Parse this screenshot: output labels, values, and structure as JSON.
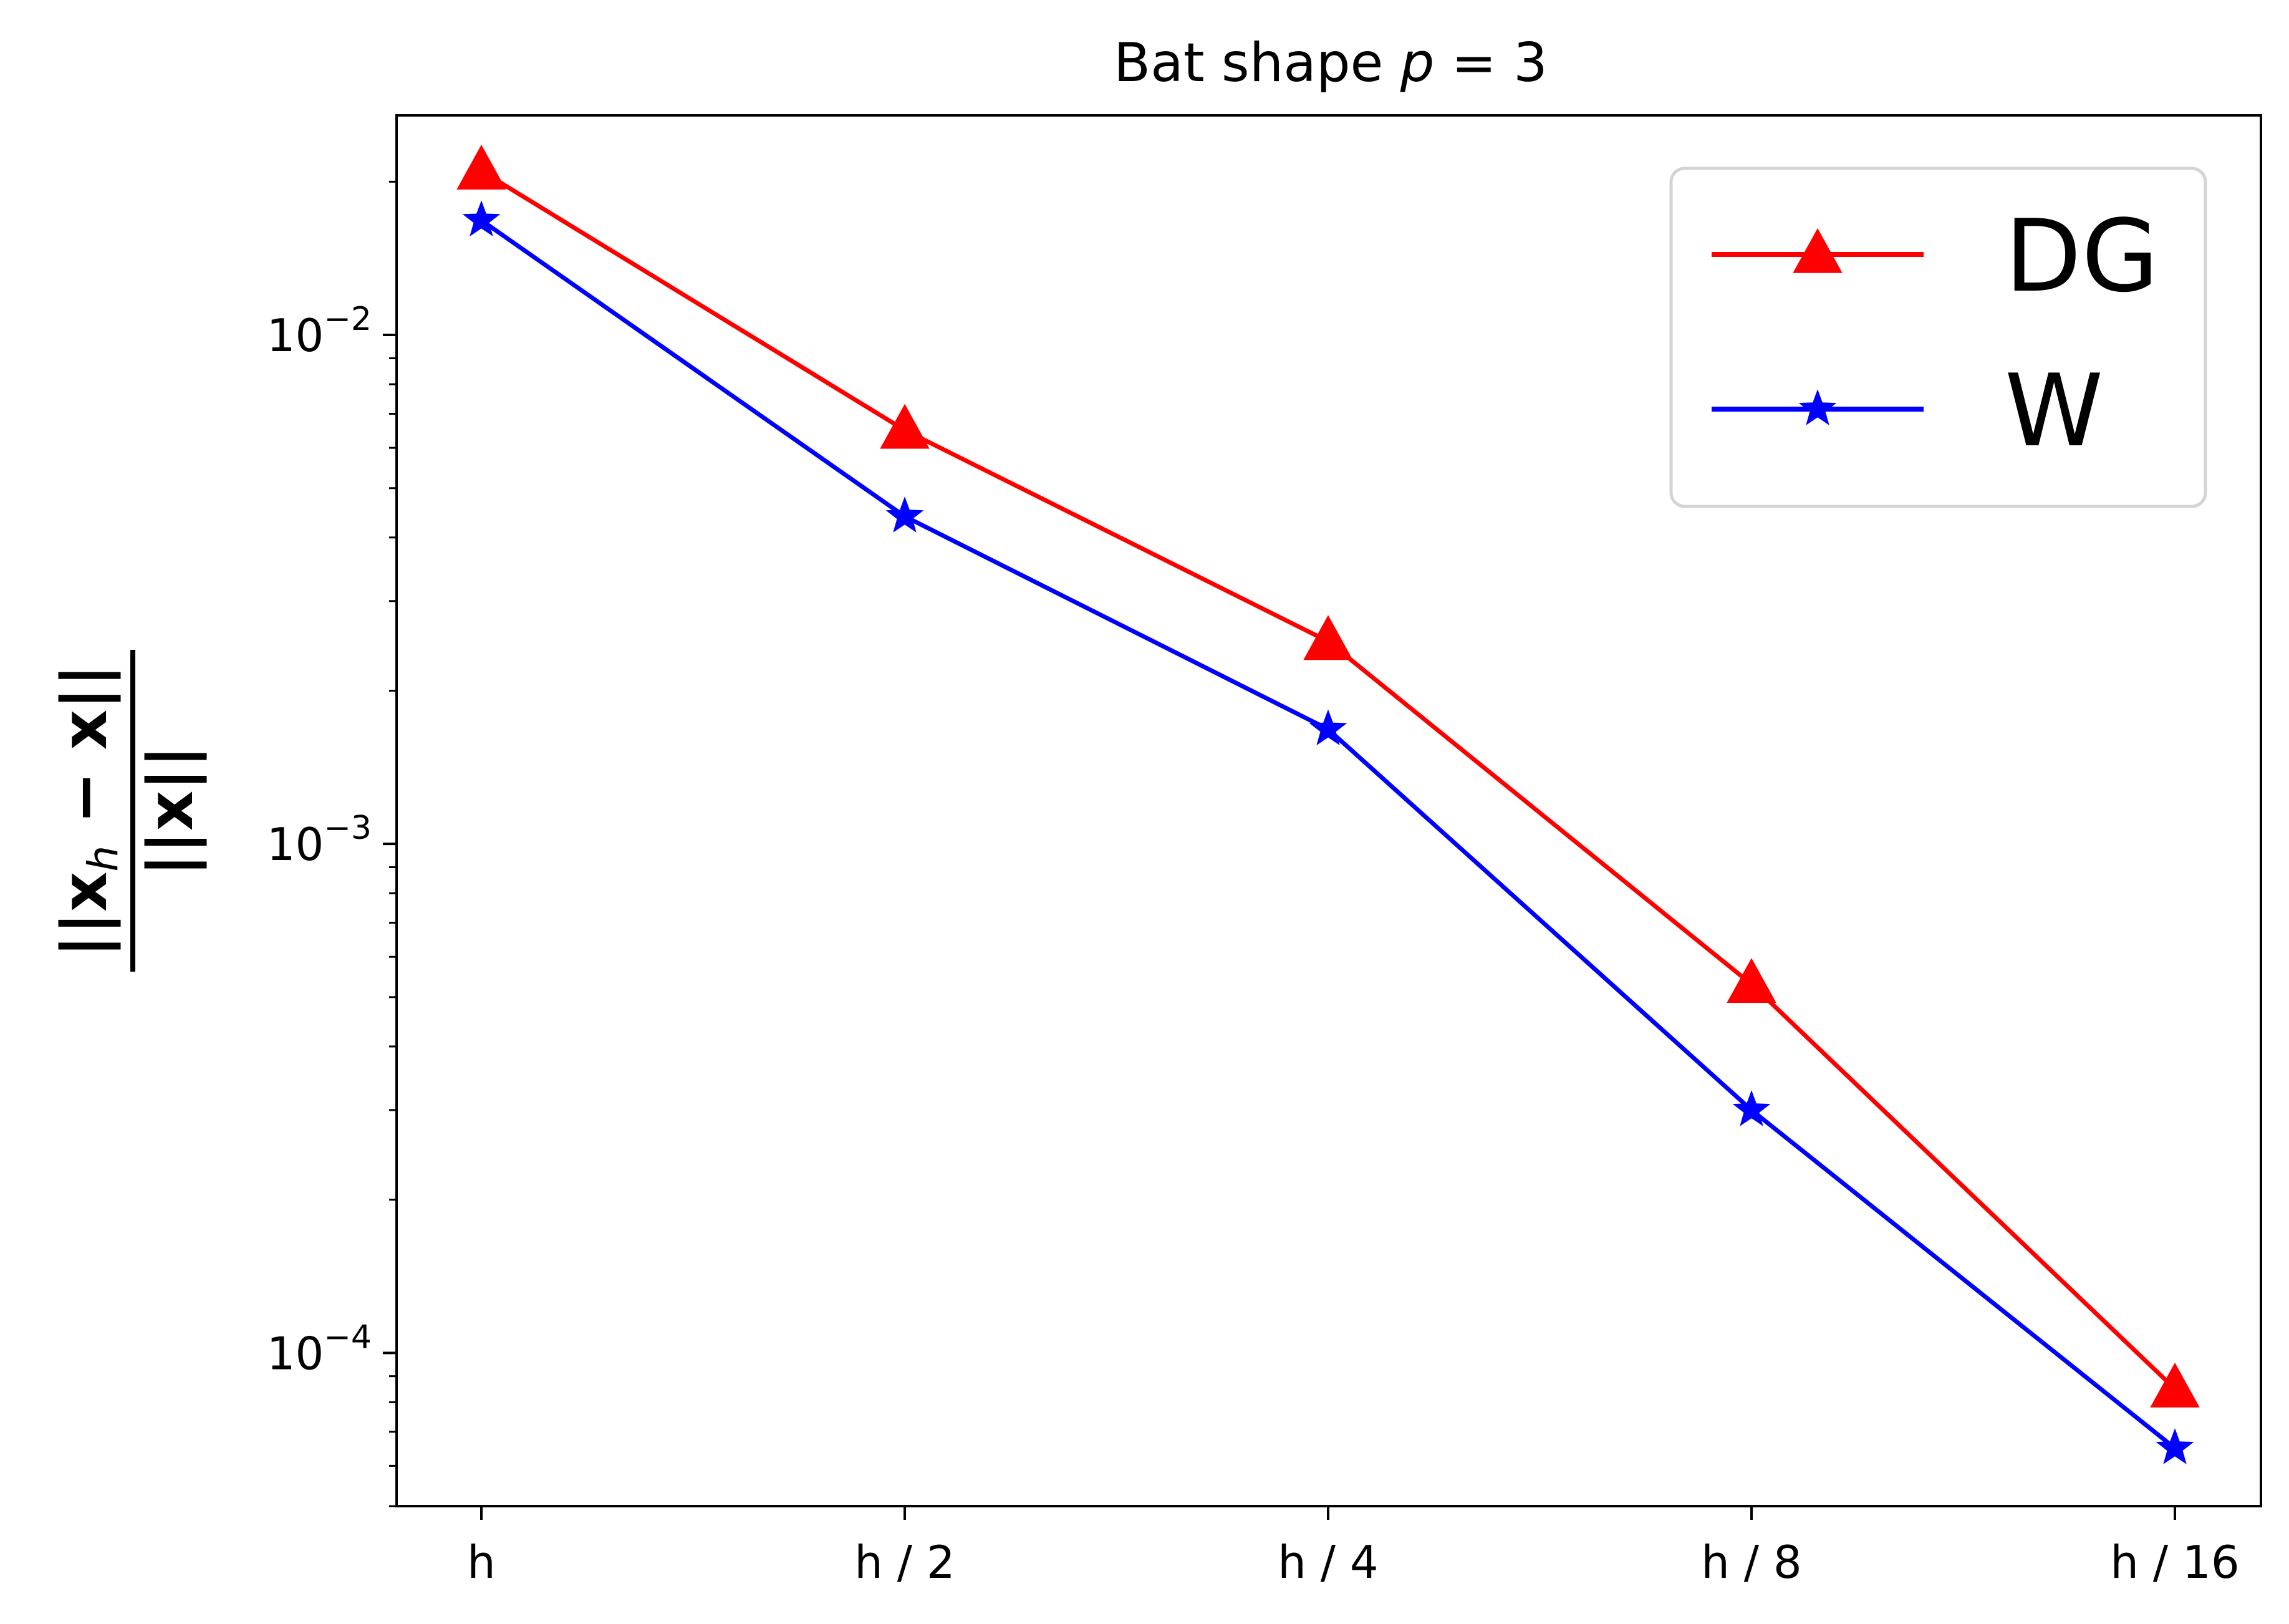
{
  "chart_data": {
    "type": "line",
    "title": "Bat shape p = 3",
    "title_parts": {
      "prefix": "Bat shape ",
      "var": "p",
      "eq": " = 3"
    },
    "ylabel_numerator": "||x",
    "ylabel_numerator_sub": "h",
    "ylabel_numerator_rest": " − x||",
    "ylabel_denominator": "||x||",
    "y_scale": "log",
    "ylim": [
      5e-05,
      0.027
    ],
    "categories": [
      "h",
      "h / 2",
      "h / 4",
      "h / 8",
      "h / 16"
    ],
    "y_major_ticks": [
      {
        "value": 0.01,
        "base": "10",
        "exp": "−2"
      },
      {
        "value": 0.001,
        "base": "10",
        "exp": "−3"
      },
      {
        "value": 0.0001,
        "base": "10",
        "exp": "−4"
      }
    ],
    "series": [
      {
        "name": "DG",
        "color": "#ff0000",
        "marker": "triangle",
        "values": [
          0.021,
          0.0065,
          0.0025,
          0.00053,
          8.5e-05
        ]
      },
      {
        "name": "W",
        "color": "#0000ff",
        "marker": "star",
        "values": [
          0.0168,
          0.0044,
          0.00168,
          0.0003,
          6.5e-05
        ]
      }
    ],
    "legend": "top-right",
    "grid": false
  }
}
